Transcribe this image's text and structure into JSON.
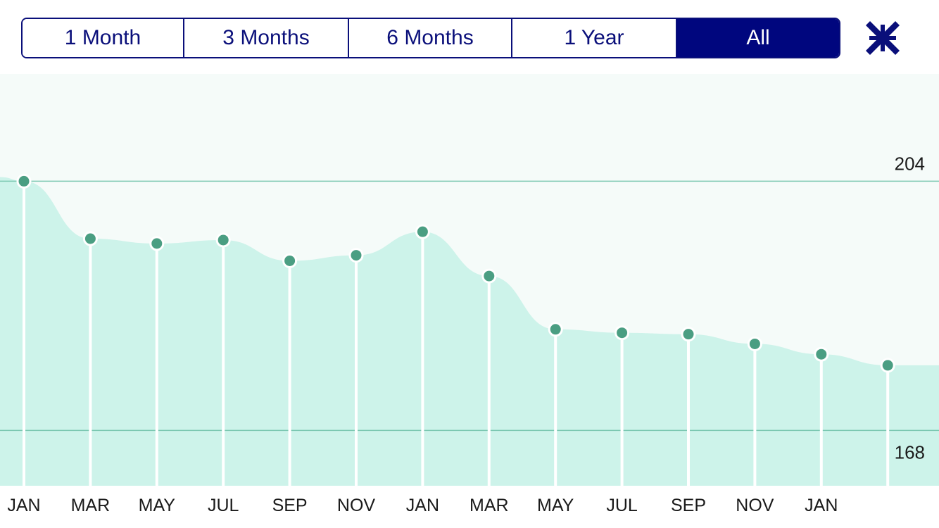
{
  "range_selector": {
    "options": [
      {
        "label": "1 Month",
        "active": false
      },
      {
        "label": "3 Months",
        "active": false
      },
      {
        "label": "6 Months",
        "active": false
      },
      {
        "label": "1 Year",
        "active": false
      },
      {
        "label": "All",
        "active": true
      }
    ]
  },
  "toolbar": {
    "collapse_icon": "collapse-arrows-icon"
  },
  "colors": {
    "accent": "#00067e",
    "area_fill": "#cdf3ea",
    "plot_background": "#f5fbf9",
    "point": "#4a9e82",
    "reference_line": "#7cc8b2"
  },
  "chart_data": {
    "type": "area",
    "title": "",
    "xlabel": "",
    "ylabel": "",
    "x_labels": [
      "JAN",
      "MAR",
      "MAY",
      "JUL",
      "SEP",
      "NOV",
      "JAN",
      "MAR",
      "MAY",
      "JUL",
      "SEP",
      "NOV",
      "JAN",
      ""
    ],
    "values": [
      204.0,
      195.7,
      195.0,
      195.5,
      192.5,
      193.3,
      196.7,
      190.3,
      182.6,
      182.1,
      181.9,
      180.5,
      179.0,
      177.4
    ],
    "reference_lines": [
      {
        "value": 204,
        "label": "204"
      },
      {
        "value": 168,
        "label": "168"
      }
    ],
    "ylim": [
      160.0,
      219.5
    ],
    "grid": false,
    "legend": "none"
  }
}
